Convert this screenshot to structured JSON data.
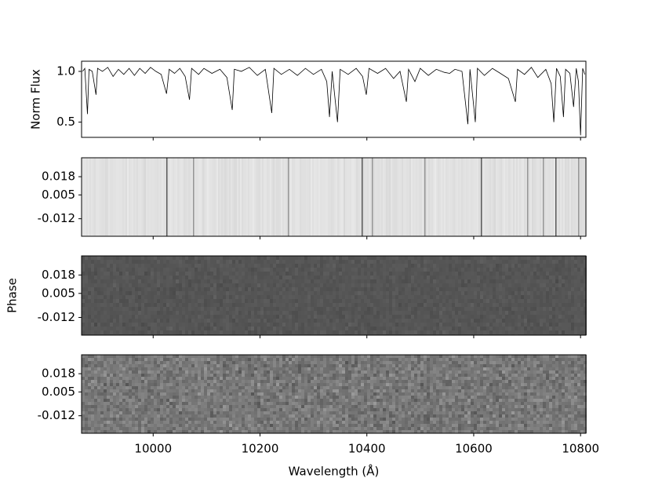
{
  "chart_data": [
    {
      "type": "line",
      "ylabel": "Norm Flux",
      "color": "#000000",
      "xlim": [
        9866,
        10810
      ],
      "xticks": [
        10000,
        10200,
        10400,
        10600,
        10800
      ],
      "ylim": [
        0.35,
        1.1
      ],
      "yticks": [
        {
          "value": 1,
          "label": "1.0"
        },
        0.5
      ],
      "x": [
        9868,
        9872,
        9877,
        9880,
        9886,
        9893,
        9896,
        9905,
        9915,
        9925,
        9935,
        9945,
        9955,
        9965,
        9975,
        9985,
        9995,
        10005,
        10015,
        10025,
        10030,
        10040,
        10050,
        10060,
        10068,
        10072,
        10085,
        10095,
        10110,
        10125,
        10138,
        10148,
        10152,
        10165,
        10180,
        10195,
        10210,
        10222,
        10226,
        10240,
        10255,
        10270,
        10285,
        10300,
        10315,
        10325,
        10330,
        10335,
        10345,
        10350,
        10365,
        10380,
        10392,
        10399,
        10404,
        10420,
        10435,
        10450,
        10462,
        10474,
        10478,
        10490,
        10500,
        10515,
        10530,
        10545,
        10555,
        10565,
        10578,
        10589,
        10593,
        10603,
        10607,
        10620,
        10635,
        10650,
        10665,
        10678,
        10682,
        10695,
        10708,
        10720,
        10735,
        10745,
        10750,
        10755,
        10762,
        10768,
        10772,
        10780,
        10787,
        10792,
        10796,
        10800,
        10804,
        10808
      ],
      "values": [
        1.0,
        1.03,
        0.58,
        1.02,
        1.0,
        0.77,
        1.03,
        1.0,
        1.04,
        0.95,
        1.02,
        0.97,
        1.03,
        0.96,
        1.03,
        0.98,
        1.04,
        1.0,
        0.97,
        0.78,
        1.02,
        0.98,
        1.03,
        0.95,
        0.72,
        1.03,
        0.97,
        1.03,
        0.98,
        1.02,
        0.94,
        0.62,
        1.02,
        1.0,
        1.04,
        0.96,
        1.02,
        0.59,
        1.03,
        0.97,
        1.02,
        0.96,
        1.03,
        0.97,
        1.02,
        0.9,
        0.55,
        1.0,
        0.5,
        1.02,
        0.97,
        1.03,
        0.95,
        0.77,
        1.03,
        0.98,
        1.03,
        0.93,
        1.0,
        0.7,
        1.02,
        0.9,
        1.03,
        0.96,
        1.02,
        0.99,
        0.98,
        1.02,
        1.0,
        0.48,
        1.02,
        0.5,
        1.03,
        0.96,
        1.03,
        0.98,
        0.93,
        0.7,
        1.02,
        0.97,
        1.04,
        0.94,
        1.02,
        0.88,
        0.5,
        1.03,
        0.95,
        0.55,
        1.02,
        0.98,
        0.65,
        1.03,
        0.9,
        0.37,
        1.03,
        0.97
      ]
    },
    {
      "type": "image",
      "style": "lines",
      "xlim": [
        9866,
        10810
      ],
      "xticks": [
        10000,
        10200,
        10400,
        10600,
        10800
      ],
      "ylim": [
        -0.0245,
        0.0315
      ],
      "yticks": [
        0.018,
        0.005,
        -0.012
      ]
    },
    {
      "type": "image",
      "style": "dark",
      "ylabel": "Phase",
      "xlim": [
        9866,
        10810
      ],
      "xticks": [
        10000,
        10200,
        10400,
        10600,
        10800
      ],
      "ylim": [
        -0.0245,
        0.0315
      ],
      "yticks": [
        0.018,
        0.005,
        -0.012
      ]
    },
    {
      "type": "image",
      "style": "noise",
      "xlabel": "Wavelength (Å)",
      "xlim": [
        9866,
        10810
      ],
      "xticks": [
        10000,
        10200,
        10400,
        10600,
        10800
      ],
      "ylim": [
        -0.0245,
        0.0315
      ],
      "yticks": [
        0.018,
        0.005,
        -0.012
      ]
    }
  ]
}
